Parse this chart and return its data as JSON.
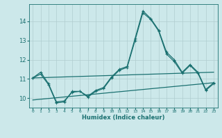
{
  "bg_color": "#cce8ea",
  "grid_color": "#b0cdd0",
  "line_color": "#1a7070",
  "xlabel": "Humidex (Indice chaleur)",
  "xlim": [
    -0.5,
    23.5
  ],
  "ylim": [
    9.5,
    14.9
  ],
  "yticks": [
    10,
    11,
    12,
    13,
    14
  ],
  "xticks": [
    0,
    1,
    2,
    3,
    4,
    5,
    6,
    7,
    8,
    9,
    10,
    11,
    12,
    13,
    14,
    15,
    16,
    17,
    18,
    19,
    20,
    21,
    22,
    23
  ],
  "line1_x": [
    0,
    1,
    2,
    3,
    4,
    5,
    6,
    7,
    8,
    9,
    10,
    11,
    12,
    13,
    14,
    15,
    16,
    17,
    18,
    19,
    20,
    21,
    22,
    23
  ],
  "line1_y": [
    11.05,
    11.35,
    10.75,
    9.8,
    9.85,
    10.3,
    10.35,
    10.1,
    10.4,
    10.55,
    11.1,
    11.5,
    11.65,
    13.1,
    14.55,
    14.15,
    13.55,
    12.4,
    12.0,
    11.35,
    11.75,
    11.35,
    10.45,
    10.8
  ],
  "line2_x": [
    0,
    1,
    2,
    3,
    4,
    5,
    6,
    7,
    8,
    9,
    10,
    11,
    12,
    13,
    14,
    15,
    16,
    17,
    18,
    19,
    20,
    21,
    22,
    23
  ],
  "line2_y": [
    11.05,
    11.25,
    10.7,
    9.75,
    9.8,
    10.35,
    10.35,
    10.05,
    10.35,
    10.5,
    11.05,
    11.45,
    11.6,
    13.0,
    14.45,
    14.1,
    13.5,
    12.3,
    11.9,
    11.3,
    11.7,
    11.3,
    10.4,
    10.75
  ],
  "line3_x": [
    0,
    23
  ],
  "line3_y": [
    11.05,
    11.35
  ],
  "line4_x": [
    0,
    23
  ],
  "line4_y": [
    9.9,
    10.8
  ]
}
